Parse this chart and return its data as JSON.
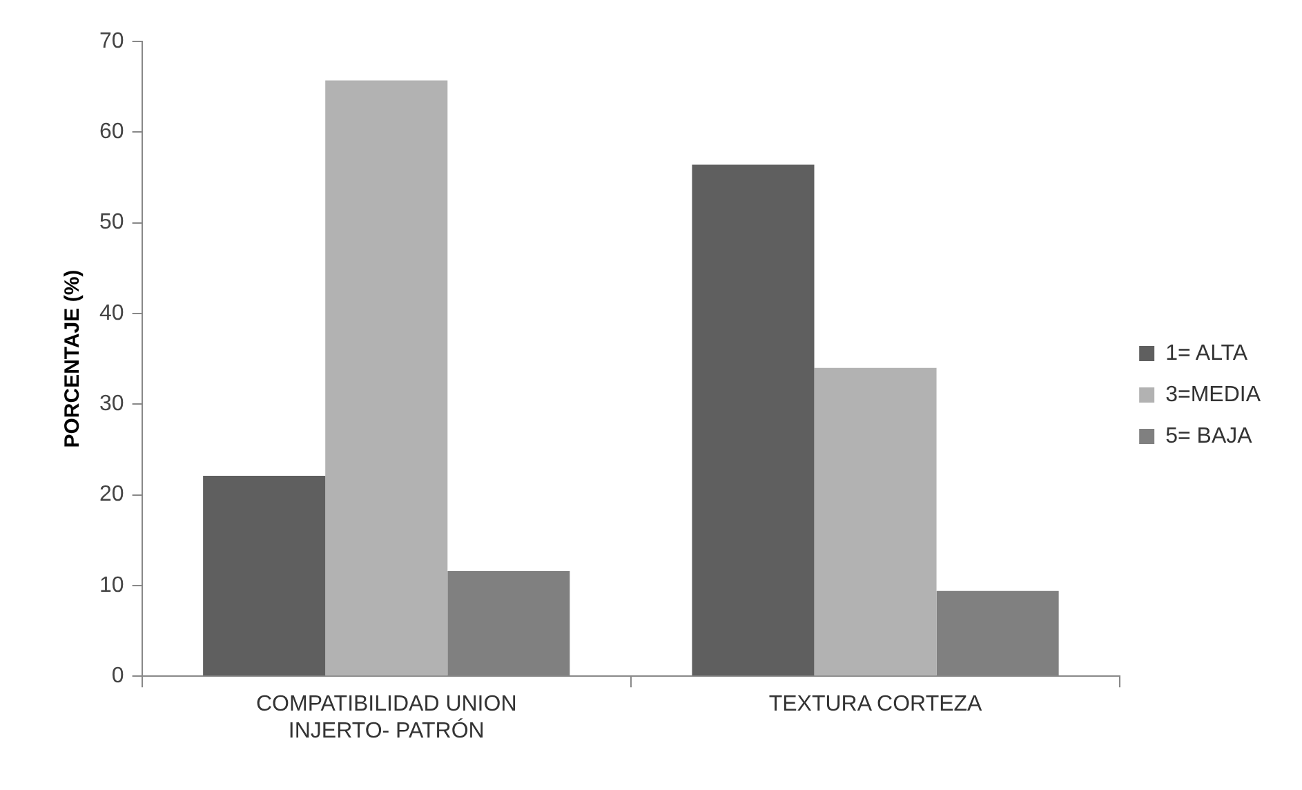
{
  "chart_data": {
    "type": "bar",
    "ylabel": "PORCENTAJE (%)",
    "categories": [
      "COMPATIBILIDAD UNION INJERTO- PATRÓN",
      "TEXTURA CORTEZA"
    ],
    "series": [
      {
        "name": "1= ALTA",
        "color": "#5f5f5f",
        "values": [
          22.1,
          56.4
        ]
      },
      {
        "name": "3=MEDIA",
        "color": "#b2b2b2",
        "values": [
          65.7,
          34.0
        ]
      },
      {
        "name": "5= BAJA",
        "color": "#808080",
        "values": [
          11.6,
          9.4
        ]
      }
    ],
    "ylim": [
      0,
      70
    ],
    "yticks": [
      0,
      10,
      20,
      30,
      40,
      50,
      60,
      70
    ],
    "grid": false,
    "legend": "right"
  }
}
